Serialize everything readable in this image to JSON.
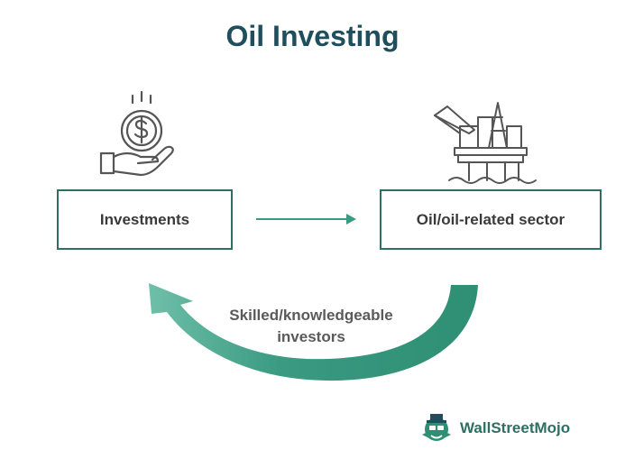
{
  "title": "Oil Investing",
  "nodes": {
    "left": "Investments",
    "right": "Oil/oil-related sector"
  },
  "cycle": {
    "line1": "Skilled/knowledgeable",
    "line2": "investors"
  },
  "brand": "WallStreetMojo",
  "icons": {
    "left": "money-hand-icon",
    "right": "oil-rig-icon"
  },
  "colors": {
    "accent": "#2f6f62",
    "arrow": "#3a9a82",
    "title": "#1f4e5c"
  }
}
